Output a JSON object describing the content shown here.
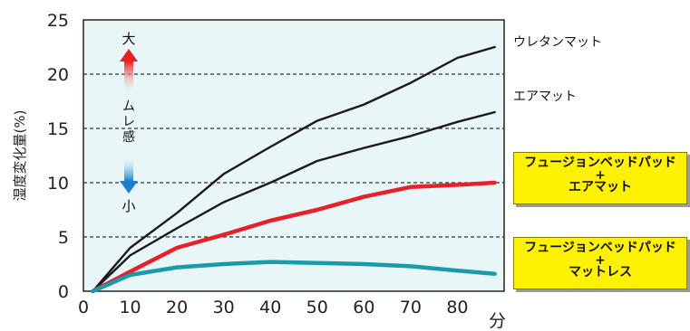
{
  "chart_data": {
    "type": "line",
    "xlabel": "分",
    "ylabel": "湿度変化量(%)",
    "xlim": [
      0,
      90
    ],
    "ylim": [
      0,
      25
    ],
    "xticks": [
      0,
      10,
      20,
      30,
      40,
      50,
      60,
      70,
      80
    ],
    "yticks": [
      0,
      5,
      10,
      15,
      20,
      25
    ],
    "grid": "horizontal-dashed",
    "annotation": {
      "top": "大",
      "middle": [
        "ム",
        "レ",
        "感"
      ],
      "bottom": "小"
    },
    "series": [
      {
        "name": "ウレタンマット",
        "color": "#1a1a1a",
        "x": [
          2,
          10,
          20,
          30,
          40,
          50,
          60,
          70,
          80,
          88
        ],
        "y": [
          0,
          4.0,
          7.2,
          10.8,
          13.3,
          15.7,
          17.2,
          19.2,
          21.5,
          22.5
        ]
      },
      {
        "name": "エアマット",
        "color": "#1a1a1a",
        "x": [
          2,
          10,
          20,
          30,
          40,
          50,
          60,
          70,
          80,
          88
        ],
        "y": [
          0,
          3.3,
          5.8,
          8.2,
          10.0,
          12.0,
          13.2,
          14.3,
          15.6,
          16.5
        ]
      },
      {
        "name_lines": [
          "フュージョンベッドパッド",
          "+",
          "エアマット"
        ],
        "color": "#e8202a",
        "x": [
          2,
          10,
          20,
          30,
          40,
          50,
          60,
          70,
          80,
          88
        ],
        "y": [
          0,
          1.8,
          4.0,
          5.2,
          6.5,
          7.5,
          8.7,
          9.6,
          9.8,
          10.0
        ]
      },
      {
        "name_lines": [
          "フュージョンベッドパッド",
          "+",
          "マットレス"
        ],
        "color": "#1a9aaa",
        "x": [
          2,
          10,
          20,
          30,
          40,
          50,
          60,
          70,
          80,
          88
        ],
        "y": [
          0,
          1.5,
          2.2,
          2.5,
          2.7,
          2.6,
          2.5,
          2.3,
          1.9,
          1.6
        ]
      }
    ]
  }
}
